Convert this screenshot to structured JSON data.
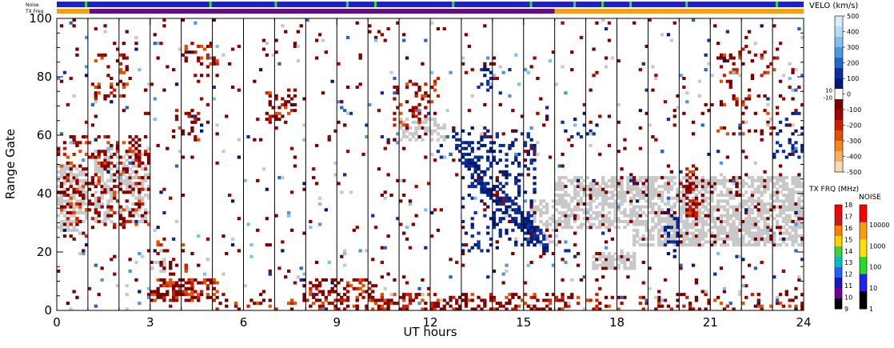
{
  "chart_data": {
    "type": "heatmap",
    "xlabel": "UT hours",
    "ylabel": "Range Gate",
    "x_ticks": [
      0,
      3,
      6,
      9,
      12,
      15,
      18,
      21,
      24
    ],
    "y_ticks": [
      0,
      20,
      40,
      60,
      80,
      100
    ],
    "xlim": [
      0,
      24
    ],
    "ylim": [
      0,
      100
    ],
    "strip_labels": {
      "noise": "Noise",
      "txfreq": "TX Freq"
    },
    "noise_strip": {
      "color": "#2020c8",
      "green_marks": [
        0.9,
        4.9,
        7.0,
        9.3,
        10.2,
        12.7,
        15.2,
        16.6,
        17.5,
        18.4,
        20.2,
        23.1
      ]
    },
    "txfreq_strip": {
      "segments": [
        {
          "from": 0,
          "to": 1.05,
          "color": "#ffa000"
        },
        {
          "from": 1.05,
          "to": 16.0,
          "color": "#6a0a8a"
        },
        {
          "from": 16.0,
          "to": 24,
          "color": "#ffa000"
        }
      ]
    },
    "velocity_colorbar": {
      "title": "VELO (km/s)",
      "labels": [
        "500",
        "400",
        "300",
        "200",
        "100",
        "0",
        "-100",
        "-200",
        "-300",
        "-400",
        "-500"
      ],
      "ground_labels": [
        "10",
        "-10"
      ],
      "colors": [
        "#d8eefc",
        "#b4dcf8",
        "#7fbff0",
        "#4b97e0",
        "#2266cc",
        "#0d2f9e",
        "#001a70",
        "#ffffff",
        "#7a0000",
        "#a00000",
        "#c82000",
        "#e05000",
        "#f08a20",
        "#f8b060",
        "#fdd8b0"
      ]
    },
    "txfreq_colorbar": {
      "title": "TX FRQ (MHz)",
      "labels": [
        "18",
        "17",
        "16",
        "15",
        "14",
        "13",
        "12",
        "11",
        "10",
        "9"
      ],
      "colors": [
        "#ff0000",
        "#d01818",
        "#ff8000",
        "#ffd000",
        "#40d040",
        "#00c0c0",
        "#2060ff",
        "#1818c0",
        "#700090",
        "#000000"
      ]
    },
    "noise_colorbar": {
      "title": "NOISE",
      "labels": [
        "10000",
        "1000",
        "100",
        "10",
        "1"
      ],
      "colors": [
        "#ff0000",
        "#ffa000",
        "#ffe000",
        "#20e020",
        "#2020ff",
        "#000000"
      ]
    },
    "ground_scatter_color": "#c8c8c8",
    "regions": [
      {
        "type": "gs",
        "x0": 0,
        "x1": 1.0,
        "y0": 27,
        "y1": 50,
        "d": 0.6
      },
      {
        "type": "gs",
        "x0": 1.2,
        "x1": 3.0,
        "y0": 30,
        "y1": 55,
        "d": 0.45
      },
      {
        "type": "gs",
        "x0": 3.0,
        "x1": 3.5,
        "y0": 13,
        "y1": 18,
        "d": 0.5
      },
      {
        "type": "gs",
        "x0": 11.0,
        "x1": 12.5,
        "y0": 58,
        "y1": 66,
        "d": 0.45
      },
      {
        "type": "gs",
        "x0": 15.2,
        "x1": 16.1,
        "y0": 22,
        "y1": 38,
        "d": 0.45
      },
      {
        "type": "gs",
        "x0": 16.0,
        "x1": 18.5,
        "y0": 28,
        "y1": 46,
        "d": 0.6
      },
      {
        "type": "gs",
        "x0": 18.5,
        "x1": 24,
        "y0": 22,
        "y1": 46,
        "d": 0.65
      },
      {
        "type": "gs",
        "x0": 17.2,
        "x1": 18.6,
        "y0": 14,
        "y1": 20,
        "d": 0.7
      },
      {
        "type": "neg",
        "x0": 0,
        "x1": 1.0,
        "y0": 25,
        "y1": 60,
        "d": 0.18
      },
      {
        "type": "neg",
        "x0": 1.0,
        "x1": 3.0,
        "y0": 28,
        "y1": 60,
        "d": 0.2
      },
      {
        "type": "neg",
        "x0": 1.2,
        "x1": 2.3,
        "y0": 72,
        "y1": 92,
        "d": 0.22
      },
      {
        "type": "neg",
        "x0": 3.0,
        "x1": 5.2,
        "y0": 3,
        "y1": 11,
        "d": 0.55
      },
      {
        "type": "neg",
        "x0": 3.2,
        "x1": 4.2,
        "y0": 12,
        "y1": 25,
        "d": 0.15
      },
      {
        "type": "neg",
        "x0": 4.1,
        "x1": 5.2,
        "y0": 84,
        "y1": 92,
        "d": 0.3
      },
      {
        "type": "neg",
        "x0": 3.8,
        "x1": 4.6,
        "y0": 58,
        "y1": 70,
        "d": 0.15
      },
      {
        "type": "neg",
        "x0": 6.7,
        "x1": 7.7,
        "y0": 64,
        "y1": 76,
        "d": 0.3
      },
      {
        "type": "neg",
        "x0": 7.9,
        "x1": 10.2,
        "y0": 3,
        "y1": 11,
        "d": 0.35
      },
      {
        "type": "neg",
        "x0": 10.8,
        "x1": 12.3,
        "y0": 62,
        "y1": 80,
        "d": 0.2
      },
      {
        "type": "neg",
        "x0": 5.0,
        "x1": 10.0,
        "y0": 0,
        "y1": 4,
        "d": 0.35
      },
      {
        "type": "neg",
        "x0": 10.0,
        "x1": 16.5,
        "y0": 0,
        "y1": 6,
        "d": 0.4
      },
      {
        "type": "neg",
        "x0": 20.2,
        "x1": 20.6,
        "y0": 32,
        "y1": 50,
        "d": 0.55
      },
      {
        "type": "neg",
        "x0": 21.2,
        "x1": 23.2,
        "y0": 60,
        "y1": 90,
        "d": 0.12
      },
      {
        "type": "neg",
        "x0": 16.5,
        "x1": 24,
        "y0": 0,
        "y1": 6,
        "d": 0.15
      },
      {
        "type": "pos",
        "x0": 13.0,
        "x1": 15.4,
        "y0": 20,
        "y1": 64,
        "d": 0.2
      },
      {
        "type": "pos",
        "x0": 13.5,
        "x1": 14.0,
        "y0": 75,
        "y1": 85,
        "d": 0.3
      },
      {
        "type": "pos",
        "x0": 19.5,
        "x1": 20.0,
        "y0": 18,
        "y1": 35,
        "d": 0.25
      },
      {
        "type": "pos",
        "x0": 23.0,
        "x1": 24,
        "y0": 52,
        "y1": 68,
        "d": 0.2
      },
      {
        "type": "pos",
        "x0": 16.1,
        "x1": 17.5,
        "y0": 58,
        "y1": 68,
        "d": 0.08
      }
    ],
    "arc_band": {
      "x0": 12.7,
      "x1": 15.8,
      "y_start": 60,
      "y_end": 22
    }
  }
}
